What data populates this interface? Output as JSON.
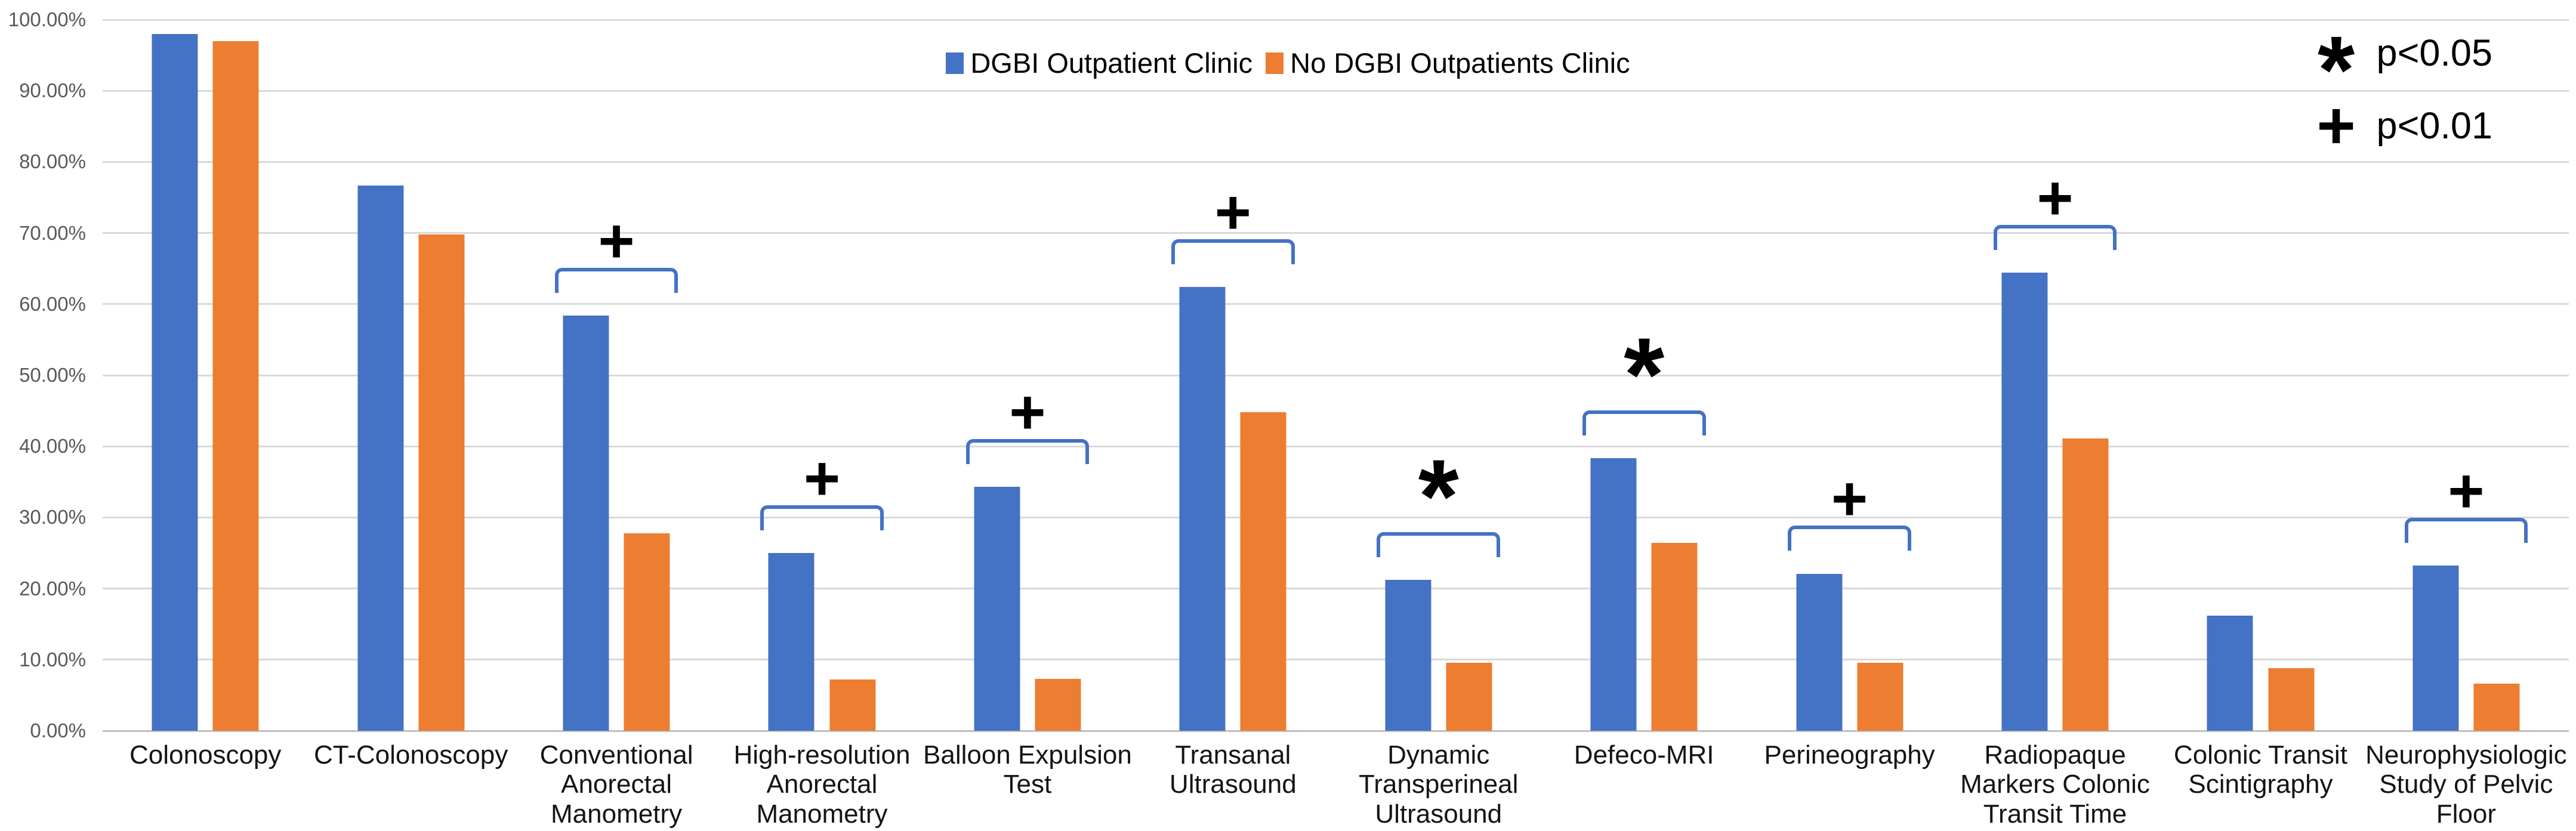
{
  "chart_data": {
    "type": "bar",
    "categories": [
      "Colonoscopy",
      "CT-Colonoscopy",
      "Conventional Anorectal Manometry",
      "High-resolution Anorectal Manometry",
      "Balloon Expulsion Test",
      "Transanal Ultrasound",
      "Dynamic Transperineal Ultrasound",
      "Defeco-MRI",
      "Perineography",
      "Radiopaque Markers Colonic Transit Time",
      "Colonic Transit Scintigraphy",
      "Neurophysiologic Study of Pelvic Floor"
    ],
    "series": [
      {
        "name": "DGBI Outpatient Clinic",
        "color": "#4472C4",
        "values": [
          98.0,
          76.7,
          58.4,
          25.0,
          34.3,
          62.4,
          21.2,
          38.3,
          22.1,
          64.4,
          16.2,
          23.2
        ]
      },
      {
        "name": "No DGBI Outpatients Clinic",
        "color": "#ED7D31",
        "values": [
          97.0,
          69.8,
          27.8,
          7.2,
          7.3,
          44.8,
          9.6,
          26.4,
          9.6,
          41.1,
          8.8,
          6.6
        ]
      }
    ],
    "significance_markers": [
      "",
      "",
      "+",
      "+",
      "+",
      "+",
      "*",
      "*",
      "+",
      "+",
      "",
      "+"
    ],
    "y_axis": {
      "min": 0,
      "max": 100,
      "step": 10,
      "tick_labels": [
        "0.00%",
        "10.00%",
        "20.00%",
        "30.00%",
        "40.00%",
        "50.00%",
        "60.00%",
        "70.00%",
        "80.00%",
        "90.00%",
        "100.00%"
      ]
    },
    "grid": true,
    "legend_position": "top-center",
    "bracket_color": "#4472C4"
  },
  "sig_key": [
    {
      "symbol": "*",
      "label": "p<0.05"
    },
    {
      "symbol": "+",
      "label": "p<0.01"
    }
  ]
}
